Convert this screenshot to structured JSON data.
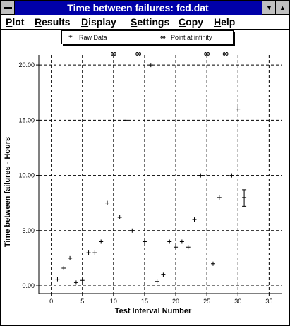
{
  "window": {
    "title": "Time between failures:   fcd.dat",
    "minimize_glyph": "▼",
    "maximize_glyph": "▲"
  },
  "menu": [
    {
      "first": "P",
      "rest": "lot"
    },
    {
      "first": "R",
      "rest": "esults"
    },
    {
      "first": "D",
      "rest": "isplay"
    },
    {
      "first": "S",
      "rest": "ettings"
    },
    {
      "first": "C",
      "rest": "opy"
    },
    {
      "first": "H",
      "rest": "elp"
    }
  ],
  "legend": {
    "raw_glyph": "+",
    "raw_label": "Raw Data",
    "inf_glyph": "∞",
    "inf_label": "Point at infinity"
  },
  "chart_data": {
    "type": "scatter",
    "title": "",
    "xlabel": "Test Interval Number",
    "ylabel": "Time between failures - Hours",
    "xlim": [
      -2,
      37
    ],
    "ylim": [
      -0.7,
      20.9
    ],
    "xticks": [
      0,
      5,
      10,
      15,
      20,
      25,
      30,
      35
    ],
    "yticks": [
      0,
      5,
      10,
      15,
      20
    ],
    "ytick_labels": [
      "0.00",
      "5.00",
      "10.00",
      "15.00",
      "20.00"
    ],
    "grid": true,
    "series": [
      {
        "name": "Raw Data",
        "marker": "+",
        "points": [
          [
            1,
            0.6
          ],
          [
            2,
            1.6
          ],
          [
            3,
            2.5
          ],
          [
            4,
            0.3
          ],
          [
            5,
            0.5
          ],
          [
            6,
            3.0
          ],
          [
            7,
            3.0
          ],
          [
            8,
            4.0
          ],
          [
            9,
            7.5
          ],
          [
            11,
            6.2
          ],
          [
            12,
            15.0
          ],
          [
            13,
            5.0
          ],
          [
            15,
            4.0
          ],
          [
            16,
            20.0
          ],
          [
            17,
            0.4
          ],
          [
            18,
            1.0
          ],
          [
            19,
            4.0
          ],
          [
            20,
            3.5
          ],
          [
            21,
            4.0
          ],
          [
            22,
            3.5
          ],
          [
            23,
            6.0
          ],
          [
            24,
            10.0
          ],
          [
            26,
            2.0
          ],
          [
            27,
            8.0
          ],
          [
            29,
            10.0
          ],
          [
            30,
            16.0
          ]
        ]
      },
      {
        "name": "Point at infinity",
        "marker": "∞",
        "x": [
          10,
          14,
          25,
          28
        ]
      }
    ],
    "error_bar": {
      "x": 31,
      "center": 8.0,
      "low": 7.2,
      "high": 8.7
    }
  }
}
